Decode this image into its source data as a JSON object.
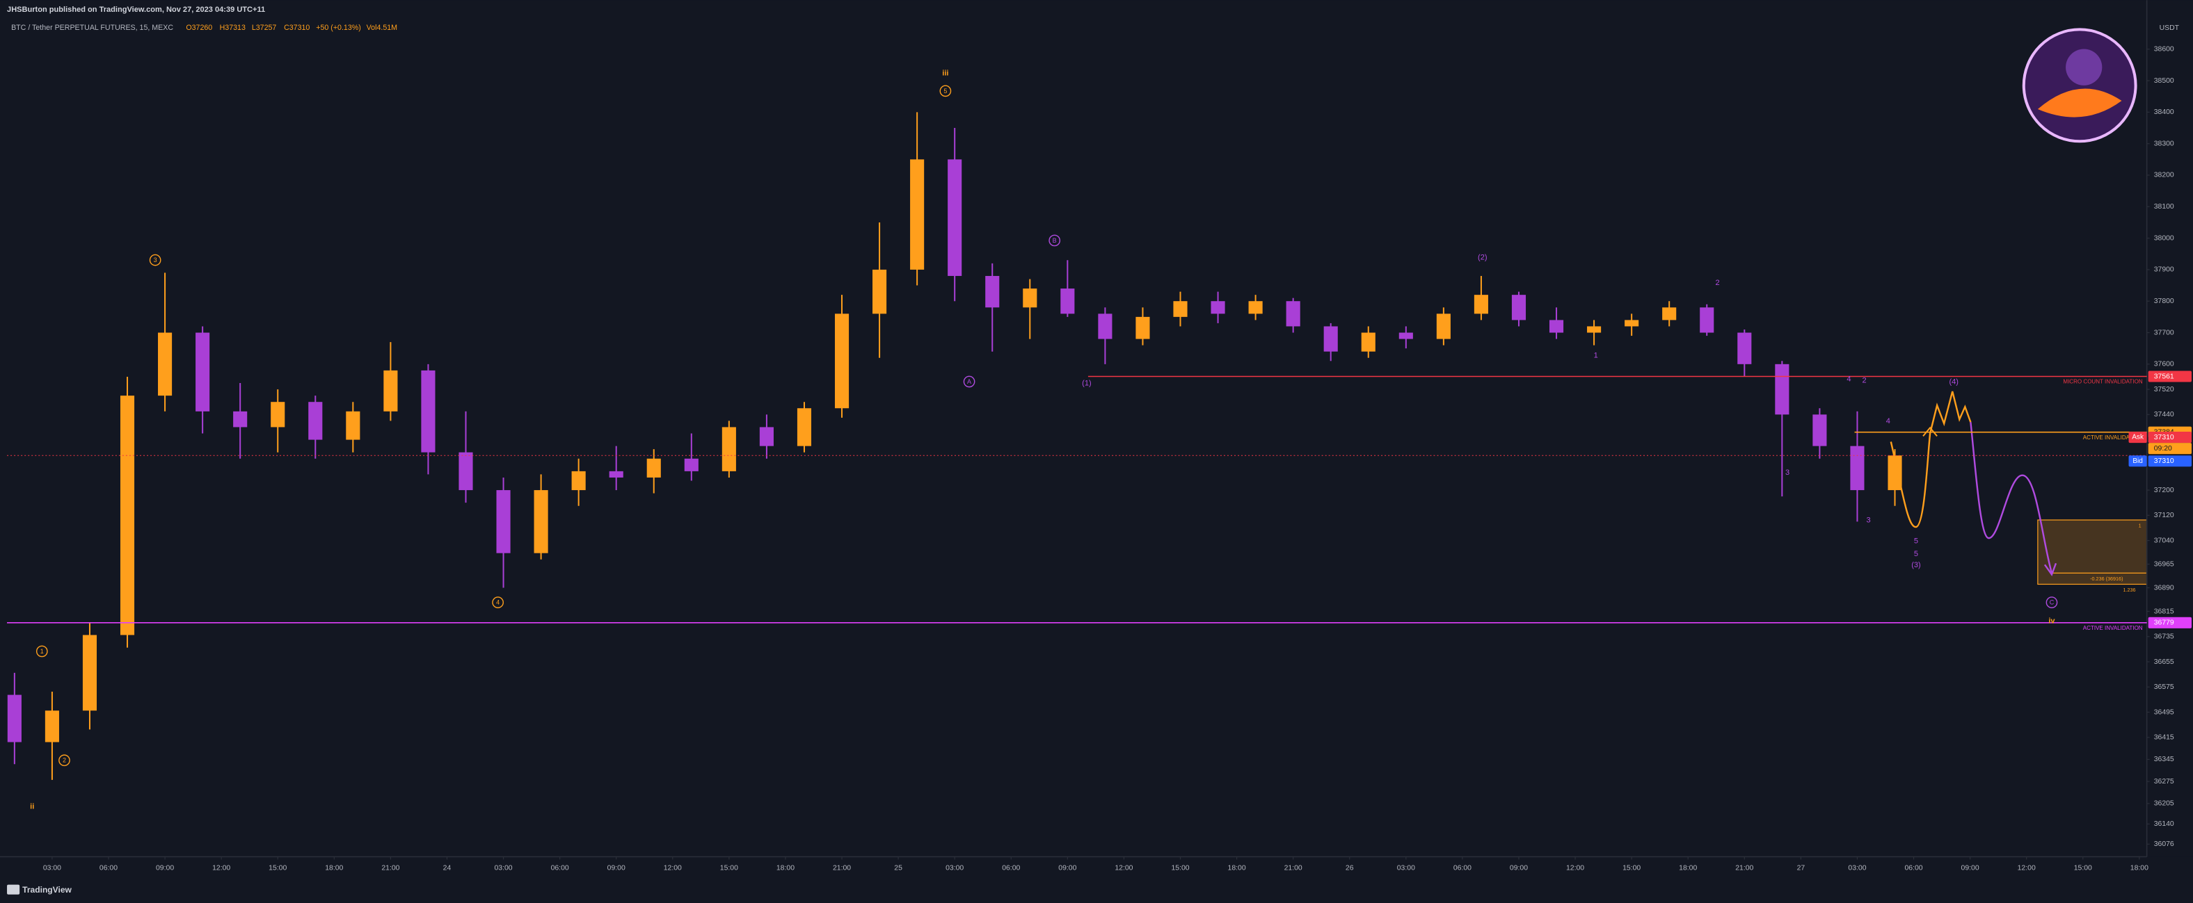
{
  "header": {
    "publisher": "JHSBurton published on TradingView.com, Nov 27, 2023 04:39 UTC+11",
    "symbol": "BTC / Tether PERPETUAL FUTURES, 15, MEXC",
    "open": "O37260",
    "high": "H37313",
    "low": "L37257",
    "close": "C37310",
    "change": "+50 (+0.13%)",
    "volume": "Vol4.51M"
  },
  "footer": {
    "brand": "TradingView"
  },
  "chart_data": {
    "type": "candlestick",
    "currency": "USDT",
    "x": [
      1,
      3,
      5,
      7,
      9,
      11,
      13,
      15,
      17,
      19,
      21,
      23,
      25,
      27,
      29,
      31,
      33,
      35,
      37,
      39,
      41,
      43,
      45,
      47,
      49,
      51,
      53,
      55,
      57,
      59,
      61,
      63,
      65,
      67,
      69,
      71,
      73,
      75,
      77,
      79,
      81,
      83,
      85,
      87,
      89,
      91,
      93,
      95,
      97,
      99,
      101
    ],
    "open": [
      36550,
      36400,
      36500,
      36740,
      37500,
      37700,
      37450,
      37400,
      37480,
      37360,
      37450,
      37580,
      37320,
      37200,
      37000,
      37200,
      37260,
      37240,
      37300,
      37260,
      37400,
      37340,
      37460,
      37760,
      37900,
      38250,
      37880,
      37780,
      37840,
      37760,
      37680,
      37750,
      37800,
      37760,
      37800,
      37720,
      37640,
      37700,
      37680,
      37760,
      37820,
      37740,
      37700,
      37720,
      37740,
      37780,
      37700,
      37600,
      37440,
      37340,
      37200
    ],
    "high": [
      36620,
      36560,
      36780,
      37560,
      37890,
      37720,
      37540,
      37520,
      37500,
      37480,
      37670,
      37600,
      37450,
      37240,
      37250,
      37300,
      37340,
      37330,
      37380,
      37420,
      37440,
      37480,
      37820,
      38050,
      38400,
      38350,
      37920,
      37870,
      37930,
      37780,
      37780,
      37830,
      37830,
      37820,
      37810,
      37730,
      37720,
      37720,
      37780,
      37880,
      37830,
      37780,
      37740,
      37760,
      37800,
      37790,
      37710,
      37610,
      37460,
      37450,
      37330
    ],
    "low": [
      36330,
      36280,
      36440,
      36700,
      37450,
      37380,
      37300,
      37320,
      37300,
      37320,
      37420,
      37250,
      37160,
      36890,
      36980,
      37150,
      37200,
      37190,
      37230,
      37240,
      37300,
      37320,
      37430,
      37620,
      37850,
      37800,
      37640,
      37680,
      37750,
      37600,
      37660,
      37720,
      37730,
      37740,
      37700,
      37610,
      37620,
      37650,
      37660,
      37740,
      37720,
      37680,
      37660,
      37690,
      37720,
      37690,
      37560,
      37180,
      37300,
      37100,
      37150
    ],
    "close": [
      36400,
      36500,
      36740,
      37500,
      37700,
      37450,
      37400,
      37480,
      37360,
      37450,
      37580,
      37320,
      37200,
      37000,
      37200,
      37260,
      37240,
      37300,
      37260,
      37400,
      37340,
      37460,
      37760,
      37900,
      38250,
      37880,
      37780,
      37840,
      37760,
      37680,
      37750,
      37800,
      37760,
      37800,
      37720,
      37640,
      37700,
      37680,
      37760,
      37820,
      37740,
      37700,
      37720,
      37740,
      37780,
      37700,
      37600,
      37440,
      37340,
      37200,
      37310
    ],
    "up_color": "#ff9f1c",
    "down_color": "#a93fd6",
    "xlim": [
      0.6,
      114.4
    ],
    "xticks": [
      {
        "value": 3,
        "label": "03:00"
      },
      {
        "value": 6,
        "label": "06:00"
      },
      {
        "value": 9,
        "label": "09:00"
      },
      {
        "value": 12,
        "label": "12:00"
      },
      {
        "value": 15,
        "label": "15:00"
      },
      {
        "value": 18,
        "label": "18:00"
      },
      {
        "value": 21,
        "label": "21:00"
      },
      24,
      {
        "value": 27,
        "label": "03:00"
      },
      {
        "value": 30,
        "label": "06:00"
      },
      {
        "value": 33,
        "label": "09:00"
      },
      {
        "value": 36,
        "label": "12:00"
      },
      {
        "value": 39,
        "label": "15:00"
      },
      {
        "value": 42,
        "label": "18:00"
      },
      {
        "value": 45,
        "label": "21:00"
      },
      {
        "value": 48,
        "label": "25"
      },
      {
        "value": 51,
        "label": "03:00"
      },
      {
        "value": 54,
        "label": "06:00"
      },
      {
        "value": 57,
        "label": "09:00"
      },
      {
        "value": 60,
        "label": "12:00"
      },
      {
        "value": 63,
        "label": "15:00"
      },
      {
        "value": 66,
        "label": "18:00"
      },
      {
        "value": 69,
        "label": "21:00"
      },
      {
        "value": 72,
        "label": "26"
      },
      {
        "value": 75,
        "label": "03:00"
      },
      {
        "value": 78,
        "label": "06:00"
      },
      {
        "value": 81,
        "label": "09:00"
      },
      {
        "value": 84,
        "label": "12:00"
      },
      {
        "value": 87,
        "label": "15:00"
      },
      {
        "value": 90,
        "label": "18:00"
      },
      {
        "value": 93,
        "label": "21:00"
      },
      {
        "value": 96,
        "label": "27"
      },
      {
        "value": 99,
        "label": "03:00"
      },
      {
        "value": 102,
        "label": "06:00"
      },
      {
        "value": 105,
        "label": "09:00"
      },
      {
        "value": 108,
        "label": "12:00"
      },
      {
        "value": 111,
        "label": "15:00"
      },
      {
        "value": 114,
        "label": "18:00"
      }
    ],
    "ylim": [
      36036,
      38698
    ],
    "yticks": [
      38600,
      38500,
      38400,
      38300,
      38200,
      38100,
      38000,
      37900,
      37800,
      37700,
      37600,
      37520,
      37440,
      37200,
      37120,
      37040,
      36965,
      36890,
      36815,
      36735,
      36655,
      36575,
      36495,
      36415,
      36345,
      36275,
      36205,
      36140,
      36076
    ],
    "grid": false,
    "levels": [
      {
        "name": "MICRO COUNT INVALIDATION",
        "value": 37561,
        "color": "#f23645"
      },
      {
        "name": "ACTIVE INVALIDATION",
        "value": 37384,
        "color": "#ff9f1c"
      },
      {
        "name": "ACTIVE INVALIDATION",
        "value": 36779,
        "color": "#e040fb"
      }
    ],
    "last_price": {
      "ask_label": "Ask",
      "ask": 37310,
      "countdown": "09:20",
      "bid_label": "Bid",
      "bid": 37310
    },
    "annotations": [
      "iii",
      "5",
      "3",
      "1",
      "2",
      "ii",
      "4",
      "A",
      "B",
      "(1)",
      "(2)",
      "1",
      "2",
      "3",
      "4",
      "2",
      "4",
      "3",
      "5",
      "5",
      "(3)",
      "(4)",
      "C",
      "iv",
      "-0.236 (36916)",
      "1.236",
      "1"
    ]
  }
}
